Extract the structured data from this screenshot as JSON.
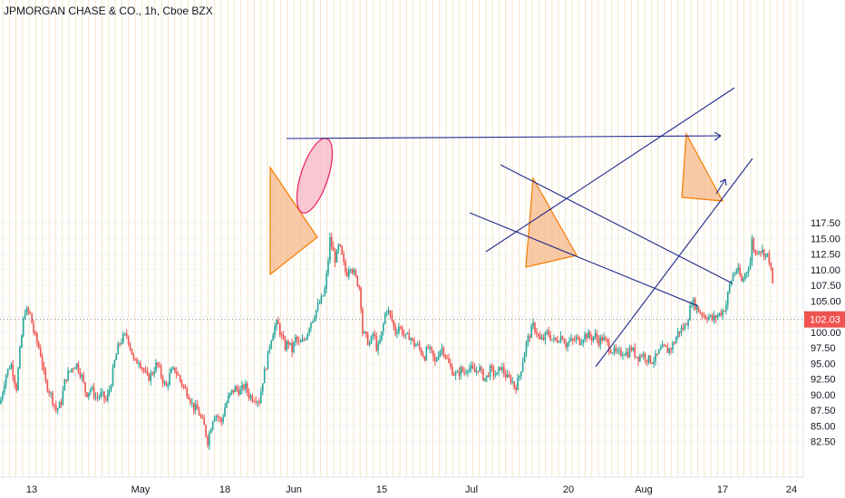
{
  "chart_data": {
    "type": "candlestick",
    "title": "JPMORGAN CHASE & CO., 1h, Cboe BZX",
    "y_ticks": [
      82.5,
      85.0,
      87.5,
      90.0,
      92.5,
      95.0,
      97.5,
      100.0,
      102.5,
      105.0,
      107.5,
      110.0,
      112.5,
      115.0,
      117.5
    ],
    "ylim": [
      80.5,
      118.0
    ],
    "x_ticks": [
      "13",
      "May",
      "18",
      "Jun",
      "15",
      "Jul",
      "20",
      "Aug",
      "17",
      "24"
    ],
    "last_price": "102.03",
    "last_price_value": 102.03,
    "colors": {
      "up": "#26a69a",
      "down": "#ef5350",
      "price_label": "#ef5350",
      "annotation_line": "#1f2a8c",
      "triangle_fill": "#f7b481",
      "triangle_stroke": "#f57c00",
      "ellipse_fill": "#f6b6c6",
      "ellipse_stroke": "#e91e63"
    },
    "price_path": [
      [
        0,
        88.5
      ],
      [
        6,
        93
      ],
      [
        12,
        95
      ],
      [
        18,
        91
      ],
      [
        22,
        97
      ],
      [
        27,
        103.5
      ],
      [
        33,
        103
      ],
      [
        38,
        99.5
      ],
      [
        44,
        97
      ],
      [
        50,
        92
      ],
      [
        56,
        90
      ],
      [
        62,
        87.5
      ],
      [
        67,
        88.5
      ],
      [
        72,
        92.5
      ],
      [
        78,
        94
      ],
      [
        84,
        95
      ],
      [
        90,
        93
      ],
      [
        95,
        90
      ],
      [
        100,
        91
      ],
      [
        106,
        89.5
      ],
      [
        112,
        90
      ],
      [
        117,
        89
      ],
      [
        122,
        91.5
      ],
      [
        126,
        95
      ],
      [
        131,
        98
      ],
      [
        135,
        99
      ],
      [
        140,
        99.5
      ],
      [
        144,
        97.5
      ],
      [
        148,
        95
      ],
      [
        153,
        95.5
      ],
      [
        158,
        94
      ],
      [
        163,
        92.5
      ],
      [
        168,
        93.5
      ],
      [
        173,
        95
      ],
      [
        178,
        93
      ],
      [
        183,
        91
      ],
      [
        188,
        93.5
      ],
      [
        193,
        94
      ],
      [
        198,
        92.5
      ],
      [
        203,
        91
      ],
      [
        208,
        90
      ],
      [
        213,
        88
      ],
      [
        218,
        87.5
      ],
      [
        222,
        86
      ],
      [
        225,
        85
      ],
      [
        229,
        82.5
      ],
      [
        232,
        84.5
      ],
      [
        236,
        87
      ],
      [
        240,
        86.5
      ],
      [
        244,
        85.5
      ],
      [
        248,
        88
      ],
      [
        252,
        89.5
      ],
      [
        256,
        90.5
      ],
      [
        260,
        91
      ],
      [
        265,
        90.5
      ],
      [
        270,
        91.5
      ],
      [
        274,
        90
      ],
      [
        278,
        89.5
      ],
      [
        282,
        89.5
      ],
      [
        286,
        89
      ],
      [
        290,
        92.5
      ],
      [
        294,
        95
      ],
      [
        298,
        98.5
      ],
      [
        302,
        100.5
      ],
      [
        306,
        101.5
      ],
      [
        310,
        99.5
      ],
      [
        314,
        97.5
      ],
      [
        318,
        98.5
      ],
      [
        322,
        97
      ],
      [
        326,
        99
      ],
      [
        330,
        98
      ],
      [
        334,
        98.5
      ],
      [
        338,
        99.5
      ],
      [
        342,
        101.5
      ],
      [
        346,
        102.5
      ],
      [
        350,
        104
      ],
      [
        354,
        105
      ],
      [
        358,
        106.5
      ],
      [
        361,
        110
      ],
      [
        364,
        115
      ],
      [
        367,
        113
      ],
      [
        370,
        111.5
      ],
      [
        374,
        114
      ],
      [
        378,
        111.5
      ],
      [
        382,
        109
      ],
      [
        386,
        111
      ],
      [
        390,
        109.5
      ],
      [
        394,
        108
      ],
      [
        397,
        107
      ],
      [
        400,
        100
      ],
      [
        404,
        99
      ],
      [
        408,
        98
      ],
      [
        412,
        100
      ],
      [
        416,
        97
      ],
      [
        419,
        98.5
      ],
      [
        422,
        100.5
      ],
      [
        426,
        104
      ],
      [
        429,
        103
      ],
      [
        432,
        102
      ],
      [
        436,
        100
      ],
      [
        440,
        101
      ],
      [
        444,
        100
      ],
      [
        448,
        99
      ],
      [
        452,
        99.5
      ],
      [
        456,
        98
      ],
      [
        460,
        98
      ],
      [
        464,
        97
      ],
      [
        468,
        96
      ],
      [
        472,
        97.5
      ],
      [
        476,
        96.5
      ],
      [
        480,
        95
      ],
      [
        484,
        97
      ],
      [
        488,
        97.5
      ],
      [
        492,
        96
      ],
      [
        496,
        94.5
      ],
      [
        500,
        93.5
      ],
      [
        504,
        93
      ],
      [
        508,
        94
      ],
      [
        512,
        93.5
      ],
      [
        516,
        94.5
      ],
      [
        520,
        94
      ],
      [
        524,
        93.5
      ],
      [
        528,
        94.5
      ],
      [
        532,
        93
      ],
      [
        536,
        92.5
      ],
      [
        540,
        94
      ],
      [
        544,
        93.5
      ],
      [
        548,
        93
      ],
      [
        552,
        94.5
      ],
      [
        556,
        93.5
      ],
      [
        560,
        92.5
      ],
      [
        564,
        92.5
      ],
      [
        568,
        91
      ],
      [
        572,
        92.5
      ],
      [
        576,
        95
      ],
      [
        580,
        98
      ],
      [
        584,
        99.5
      ],
      [
        588,
        101
      ],
      [
        592,
        100
      ],
      [
        596,
        98.5
      ],
      [
        600,
        99
      ],
      [
        604,
        100
      ],
      [
        608,
        99
      ],
      [
        612,
        98.5
      ],
      [
        616,
        99
      ],
      [
        620,
        99.5
      ],
      [
        624,
        98
      ],
      [
        628,
        98.5
      ],
      [
        632,
        98.5
      ],
      [
        636,
        99
      ],
      [
        640,
        98.5
      ],
      [
        644,
        99.5
      ],
      [
        648,
        99.5
      ],
      [
        652,
        99
      ],
      [
        656,
        99.5
      ],
      [
        660,
        98.5
      ],
      [
        664,
        99
      ],
      [
        668,
        98.5
      ],
      [
        672,
        97.5
      ],
      [
        676,
        97
      ],
      [
        680,
        96.5
      ],
      [
        684,
        96.5
      ],
      [
        688,
        97
      ],
      [
        692,
        96.5
      ],
      [
        696,
        97.5
      ],
      [
        700,
        96.5
      ],
      [
        704,
        96
      ],
      [
        708,
        96.5
      ],
      [
        712,
        96
      ],
      [
        716,
        95.5
      ],
      [
        720,
        95.5
      ],
      [
        724,
        96
      ],
      [
        728,
        97
      ],
      [
        732,
        97.5
      ],
      [
        736,
        97
      ],
      [
        740,
        97.5
      ],
      [
        744,
        98.5
      ],
      [
        748,
        100
      ],
      [
        752,
        100.5
      ],
      [
        756,
        101
      ],
      [
        760,
        103
      ],
      [
        763,
        105
      ],
      [
        766,
        104.5
      ],
      [
        770,
        103.5
      ],
      [
        774,
        103
      ],
      [
        778,
        102.5
      ],
      [
        782,
        102.5
      ],
      [
        786,
        102
      ],
      [
        790,
        102.5
      ],
      [
        794,
        103
      ],
      [
        798,
        103.5
      ],
      [
        801,
        104.5
      ],
      [
        804,
        107
      ],
      [
        808,
        109
      ],
      [
        812,
        110
      ],
      [
        815,
        109.5
      ],
      [
        818,
        108
      ],
      [
        821,
        109
      ],
      [
        824,
        110
      ],
      [
        828,
        111.5
      ],
      [
        830,
        116
      ],
      [
        832,
        112
      ],
      [
        836,
        113.5
      ],
      [
        840,
        113
      ],
      [
        844,
        112.5
      ],
      [
        848,
        112
      ],
      [
        852,
        108
      ],
      [
        854,
        104.5
      ]
    ]
  }
}
